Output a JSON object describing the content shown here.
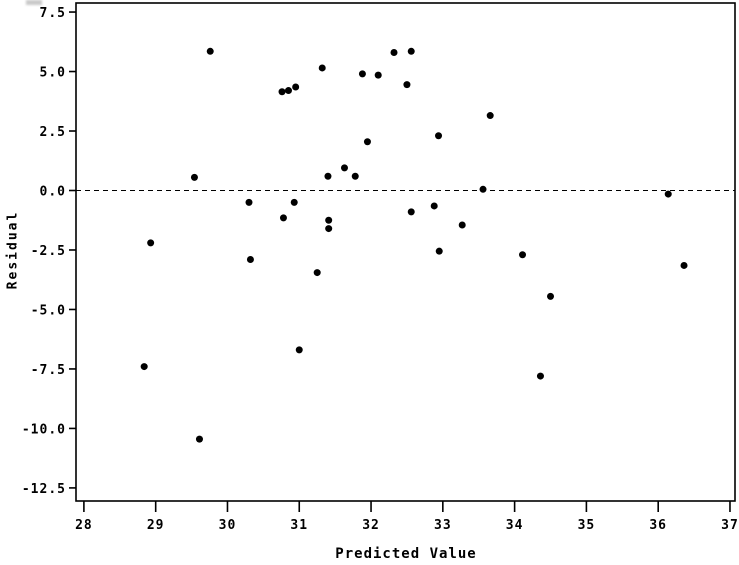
{
  "figure": {
    "background": "#ffffff",
    "frame_color": "#000000"
  },
  "chart_data": {
    "type": "scatter",
    "title": "",
    "xlabel": "Predicted Value",
    "ylabel": "Residual",
    "x_ticks": [
      28,
      29,
      30,
      31,
      32,
      33,
      34,
      35,
      36,
      37
    ],
    "y_ticks": [
      7.5,
      5.0,
      2.5,
      0.0,
      -2.5,
      -5.0,
      -7.5,
      -10.0,
      -12.5
    ],
    "xlim": [
      27.89,
      37.07
    ],
    "ylim": [
      -13.05,
      7.88
    ],
    "grid": false,
    "legend": false,
    "reference_line": {
      "y": 0.0,
      "style": "dashed",
      "color": "#000000"
    },
    "marker": {
      "shape": "circle",
      "color": "#000000",
      "radius_px": 3.5
    },
    "points": [
      [
        29.76,
        5.85
      ],
      [
        32.32,
        5.8
      ],
      [
        32.56,
        5.85
      ],
      [
        31.32,
        5.15
      ],
      [
        31.88,
        4.9
      ],
      [
        32.1,
        4.85
      ],
      [
        32.5,
        4.45
      ],
      [
        30.95,
        4.35
      ],
      [
        30.85,
        4.2
      ],
      [
        30.76,
        4.15
      ],
      [
        33.66,
        3.15
      ],
      [
        32.94,
        2.3
      ],
      [
        31.95,
        2.05
      ],
      [
        31.63,
        0.95
      ],
      [
        31.4,
        0.6
      ],
      [
        31.78,
        0.6
      ],
      [
        29.54,
        0.55
      ],
      [
        33.56,
        0.05
      ],
      [
        36.14,
        -0.15
      ],
      [
        30.3,
        -0.5
      ],
      [
        30.93,
        -0.5
      ],
      [
        32.88,
        -0.65
      ],
      [
        32.56,
        -0.9
      ],
      [
        30.78,
        -1.15
      ],
      [
        31.41,
        -1.25
      ],
      [
        33.27,
        -1.45
      ],
      [
        31.41,
        -1.6
      ],
      [
        28.93,
        -2.2
      ],
      [
        32.95,
        -2.55
      ],
      [
        34.11,
        -2.7
      ],
      [
        30.32,
        -2.9
      ],
      [
        36.36,
        -3.15
      ],
      [
        31.25,
        -3.45
      ],
      [
        34.5,
        -4.45
      ],
      [
        31.0,
        -6.7
      ],
      [
        28.84,
        -7.4
      ],
      [
        34.36,
        -7.8
      ],
      [
        29.61,
        -10.45
      ]
    ]
  }
}
